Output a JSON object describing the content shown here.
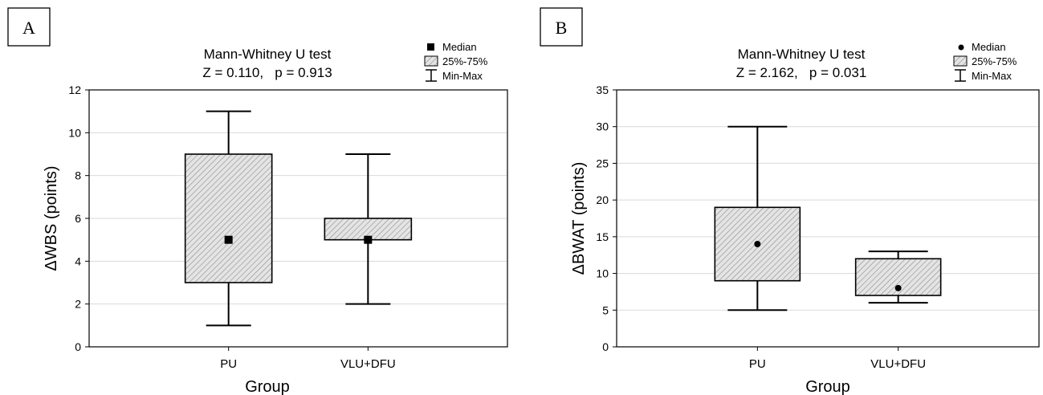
{
  "chart_data": [
    {
      "type": "boxplot",
      "panel_label": "A",
      "title": "Mann-Whitney U test",
      "subtitle": "Z = 0.110,   p = 0.913",
      "xlabel": "Group",
      "ylabel": "ΔWBS (points)",
      "ylim": [
        0,
        12
      ],
      "yticks": [
        "0",
        "2",
        "4",
        "6",
        "8",
        "10",
        "12"
      ],
      "grid": true,
      "legend_position": "top-right",
      "legend": {
        "median": "Median",
        "box": "25%-75%",
        "whisker": "Min-Max"
      },
      "median_marker": "square",
      "categories": [
        "PU",
        "VLU+DFU"
      ],
      "boxes": [
        {
          "min": 1,
          "q1": 3,
          "median": 5,
          "q3": 9,
          "max": 11
        },
        {
          "min": 2,
          "q1": 5,
          "median": 5,
          "q3": 6,
          "max": 9
        }
      ]
    },
    {
      "type": "boxplot",
      "panel_label": "B",
      "title": "Mann-Whitney U test",
      "subtitle": "Z = 2.162,   p = 0.031",
      "xlabel": "Group",
      "ylabel": "ΔBWAT (points)",
      "ylim": [
        0,
        35
      ],
      "yticks": [
        "0",
        "5",
        "10",
        "15",
        "20",
        "25",
        "30",
        "35"
      ],
      "grid": true,
      "legend_position": "top-right",
      "legend": {
        "median": "Median",
        "box": "25%-75%",
        "whisker": "Min-Max"
      },
      "median_marker": "circle",
      "categories": [
        "PU",
        "VLU+DFU"
      ],
      "boxes": [
        {
          "min": 5,
          "q1": 9,
          "median": 14,
          "q3": 19,
          "max": 30
        },
        {
          "min": 6,
          "q1": 7,
          "median": 8,
          "q3": 12,
          "max": 13
        }
      ]
    }
  ]
}
